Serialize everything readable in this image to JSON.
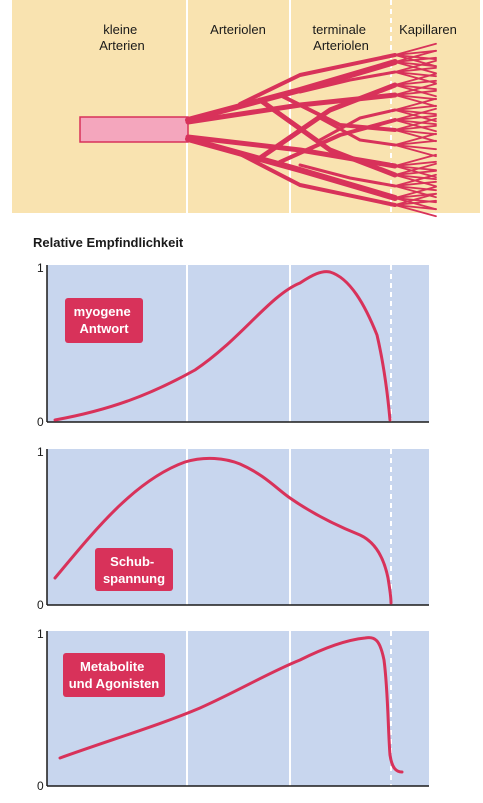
{
  "top_diagram": {
    "zones": [
      {
        "label_lines": [
          "kleine",
          "Arterien"
        ]
      },
      {
        "label_lines": [
          "Arteriolen"
        ]
      },
      {
        "label_lines": [
          "terminale",
          "Arteriolen"
        ]
      },
      {
        "label_lines": [
          "Kapillaren"
        ]
      }
    ]
  },
  "section_title": "Relative Empfindlichkeit",
  "panels": [
    {
      "name": "myogene-antwort",
      "label_lines": [
        "myogene",
        "Antwort"
      ],
      "y_max": "1",
      "y_min": "0"
    },
    {
      "name": "schubspannung",
      "label_lines": [
        "Schub-",
        "spannung"
      ],
      "y_max": "1",
      "y_min": "0"
    },
    {
      "name": "metabolite",
      "label_lines": [
        "Metabolite",
        "und Agonisten"
      ],
      "y_max": "1",
      "y_min": "0"
    }
  ],
  "colors": {
    "top_bg": "#f9e3b0",
    "panel_bg": "#c8d6ee",
    "vessel": "#d8325a",
    "vessel_light": "#f4a6bd",
    "curve": "#d8325a",
    "label_box": "#d8325a",
    "divider": "#ffffff"
  }
}
